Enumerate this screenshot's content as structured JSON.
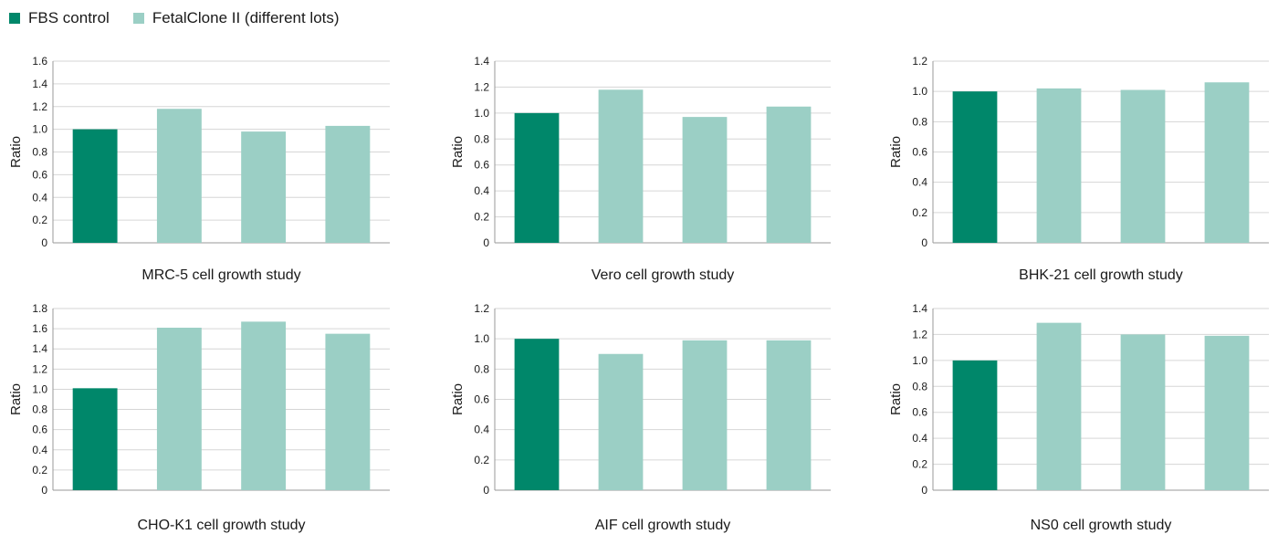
{
  "legend": [
    {
      "label": "FBS control",
      "color": "#00876a"
    },
    {
      "label": "FetalClone II (different lots)",
      "color": "#9bcfc5"
    }
  ],
  "chart_data": [
    {
      "type": "bar",
      "title": "MRC-5 cell growth study",
      "ylabel": "Ratio",
      "ylim": [
        0,
        1.6
      ],
      "yticks": [
        "0",
        "0.2",
        "0.4",
        "0.6",
        "0.8",
        "1.0",
        "1.2",
        "1.4",
        "1.6"
      ],
      "categories": [
        "",
        "",
        "",
        ""
      ],
      "values": [
        1.0,
        1.18,
        0.98,
        1.03
      ],
      "series_of_bar": [
        0,
        1,
        1,
        1
      ]
    },
    {
      "type": "bar",
      "title": "Vero cell growth study",
      "ylabel": "Ratio",
      "ylim": [
        0,
        1.4
      ],
      "yticks": [
        "0",
        "0.2",
        "0.4",
        "0.6",
        "0.8",
        "1.0",
        "1.2",
        "1.4"
      ],
      "categories": [
        "",
        "",
        "",
        ""
      ],
      "values": [
        1.0,
        1.18,
        0.97,
        1.05
      ],
      "series_of_bar": [
        0,
        1,
        1,
        1
      ]
    },
    {
      "type": "bar",
      "title": "BHK-21 cell growth study",
      "ylabel": "Ratio",
      "ylim": [
        0,
        1.2
      ],
      "yticks": [
        "0",
        "0.2",
        "0.4",
        "0.6",
        "0.8",
        "1.0",
        "1.2"
      ],
      "categories": [
        "",
        "",
        "",
        ""
      ],
      "values": [
        1.0,
        1.02,
        1.01,
        1.06
      ],
      "series_of_bar": [
        0,
        1,
        1,
        1
      ]
    },
    {
      "type": "bar",
      "title": "CHO-K1 cell growth study",
      "ylabel": "Ratio",
      "ylim": [
        0,
        1.8
      ],
      "yticks": [
        "0",
        "0.2",
        "0.4",
        "0.6",
        "0.8",
        "1.0",
        "1.2",
        "1.4",
        "1.6",
        "1.8"
      ],
      "categories": [
        "",
        "",
        "",
        ""
      ],
      "values": [
        1.01,
        1.61,
        1.67,
        1.55
      ],
      "series_of_bar": [
        0,
        1,
        1,
        1
      ]
    },
    {
      "type": "bar",
      "title": "AIF cell growth study",
      "ylabel": "Ratio",
      "ylim": [
        0,
        1.2
      ],
      "yticks": [
        "0",
        "0.2",
        "0.4",
        "0.6",
        "0.8",
        "1.0",
        "1.2"
      ],
      "categories": [
        "",
        "",
        "",
        ""
      ],
      "values": [
        1.0,
        0.9,
        0.99,
        0.99
      ],
      "series_of_bar": [
        0,
        1,
        1,
        1
      ]
    },
    {
      "type": "bar",
      "title": "NS0 cell growth study",
      "ylabel": "Ratio",
      "ylim": [
        0,
        1.4
      ],
      "yticks": [
        "0",
        "0.2",
        "0.4",
        "0.6",
        "0.8",
        "1.0",
        "1.2",
        "1.4"
      ],
      "categories": [
        "",
        "",
        "",
        ""
      ],
      "values": [
        1.0,
        1.29,
        1.2,
        1.19
      ],
      "series_of_bar": [
        0,
        1,
        1,
        1
      ]
    }
  ]
}
